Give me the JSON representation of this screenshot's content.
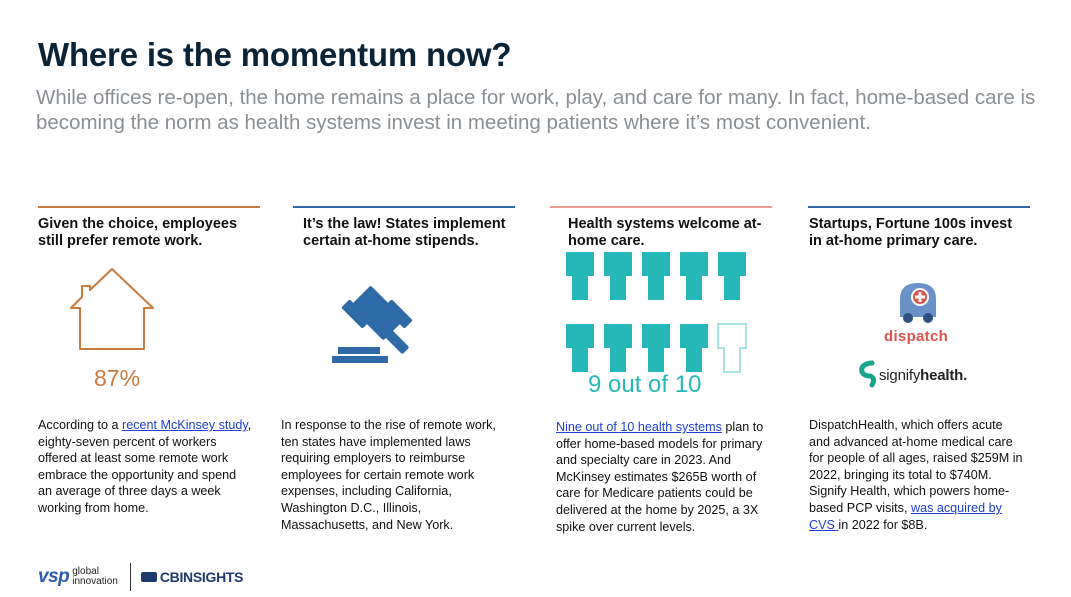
{
  "title": "Where is the momentum now?",
  "subtitle": "While offices re-open, the home remains a place for work, play, and care for many. In fact, home-based care is becoming the norm as health systems invest in meeting patients where it’s most convenient.",
  "columns": [
    {
      "heading": "Given the choice, employees still prefer remote work.",
      "stat": "87%",
      "body_link": "recent McKinsey study",
      "body_pre": "According to a ",
      "body_post": ", eighty-seven percent of workers offered at least some remote work embrace the opportunity and spend an average of three days a week working from home."
    },
    {
      "heading": "It’s the law! States implement certain at-home stipends.",
      "body": "In response to the rise of remote work, ten states have implemented laws requiring employers to reimburse employees for certain remote work expenses, including California, Washington D.C., Illinois, Massachusetts, and New York."
    },
    {
      "heading": "Health systems welcome at-home care.",
      "stat": "9 out of 10",
      "stat_fraction": 0.9,
      "body_link": "Nine out of 10 health systems",
      "body_post": " plan to offer home-based models for primary and specialty care in 2023. And McKinsey estimates $265B worth of care for Medicare patients could be delivered at the home by 2025, a 3X spike over current levels."
    },
    {
      "heading": "Startups, Fortune 100s invest in at-home primary care.",
      "logo_dispatch": "dispatch",
      "logo_signify_a": "signify",
      "logo_signify_b": "health.",
      "body_pre": "DispatchHealth, which offers acute and advanced at-home medical care for people of all ages, raised $259M in 2022, bringing its total to $740M. Signify Health, which powers home-based PCP visits, ",
      "body_link": "was acquired by CVS ",
      "body_post": "in 2022 for $8B."
    }
  ],
  "footer": {
    "vsp": "vsp",
    "global": "global",
    "innovation": "innovation",
    "cb": "CBINSIGHTS"
  },
  "colors": {
    "orange": "#c97a3d",
    "blue": "#2f6aa8",
    "teal": "#26b8b8",
    "salmon": "#e89c90",
    "link": "#1f3fd1"
  },
  "icons": [
    "house-icon",
    "gavel-icon",
    "hospital-figure-icon",
    "ambulance-icon",
    "signify-icon"
  ]
}
